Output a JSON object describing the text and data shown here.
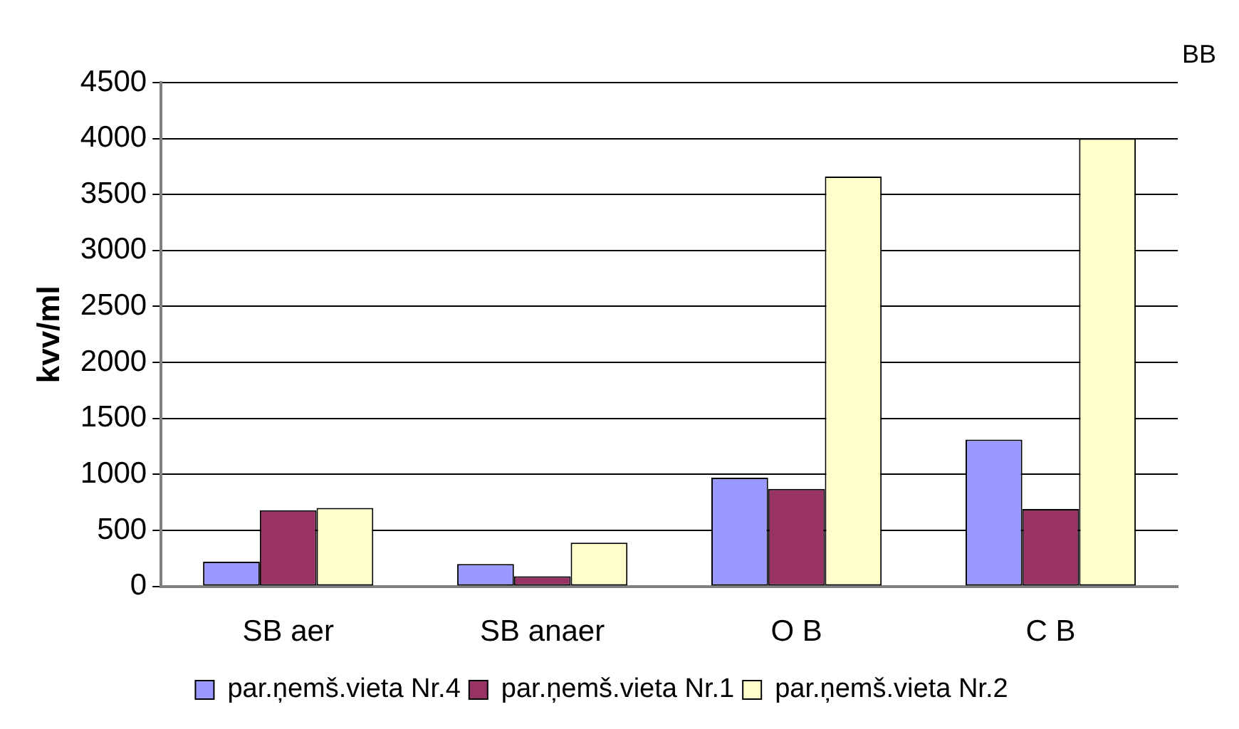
{
  "chart_data": {
    "type": "bar",
    "ylabel": "kvv/ml",
    "annotations": [
      "BB"
    ],
    "categories": [
      "SB aer",
      "SB anaer",
      "O B",
      "C B"
    ],
    "series": [
      {
        "name": "par.ņemš.vieta Nr.4",
        "color": "#9999ff",
        "values": [
          220,
          200,
          970,
          1310
        ]
      },
      {
        "name": "par.ņemš.vieta Nr.1",
        "color": "#993366",
        "values": [
          680,
          90,
          870,
          690
        ]
      },
      {
        "name": "par.ņemš.vieta Nr.2",
        "color": "#ffffcc",
        "values": [
          700,
          390,
          3660,
          4000
        ]
      }
    ],
    "ylim": [
      0,
      4500
    ],
    "yticks": [
      0,
      500,
      1000,
      1500,
      2000,
      2500,
      3000,
      3500,
      4000,
      4500
    ],
    "grid": "y",
    "legend": "bottom"
  }
}
